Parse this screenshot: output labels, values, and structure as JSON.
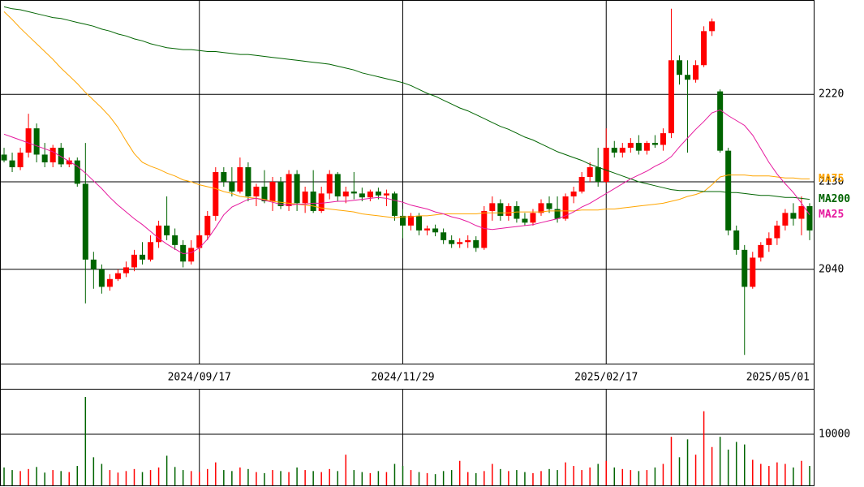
{
  "chart_data": [
    {
      "type": "candlestick",
      "categories": [
        null,
        null,
        null,
        null,
        null,
        null,
        null,
        null,
        null,
        null,
        null,
        null,
        null,
        null,
        null,
        null,
        null,
        null,
        null,
        null,
        null,
        null,
        null,
        null,
        "2024/09/17",
        null,
        null,
        null,
        null,
        null,
        null,
        null,
        null,
        null,
        null,
        null,
        null,
        null,
        null,
        null,
        null,
        null,
        null,
        null,
        null,
        null,
        null,
        null,
        null,
        "2024/11/29",
        null,
        null,
        null,
        null,
        null,
        null,
        null,
        null,
        null,
        null,
        null,
        null,
        null,
        null,
        null,
        null,
        null,
        null,
        null,
        null,
        null,
        null,
        null,
        null,
        "2025/02/17",
        null,
        null,
        null,
        null,
        null,
        null,
        null,
        null,
        null,
        null,
        null,
        null,
        null,
        null,
        null,
        null,
        null,
        null,
        null,
        null,
        null,
        null,
        null,
        null,
        "2025/05/01"
      ],
      "open": [
        2158,
        2152,
        2145,
        2160,
        2185,
        2158,
        2150,
        2165,
        2148,
        2152,
        2128,
        2050,
        2040,
        2022,
        2030,
        2036,
        2042,
        2055,
        2050,
        2068,
        2085,
        2075,
        2065,
        2048,
        2062,
        2075,
        2095,
        2140,
        2130,
        2120,
        2145,
        2115,
        2125,
        2110,
        2130,
        2105,
        2138,
        2108,
        2120,
        2100,
        2118,
        2138,
        2115,
        2120,
        2118,
        2114,
        2120,
        2116,
        2118,
        2095,
        2085,
        2095,
        2080,
        2082,
        2078,
        2070,
        2066,
        2068,
        2070,
        2062,
        2100,
        2108,
        2095,
        2105,
        2092,
        2088,
        2098,
        2108,
        2102,
        2092,
        2115,
        2120,
        2135,
        2145,
        2130,
        2165,
        2160,
        2165,
        2170,
        2162,
        2170,
        2168,
        2180,
        2255,
        2240,
        2235,
        2250,
        2285,
        2223,
        2162,
        2080,
        2060,
        2022,
        2052,
        2065,
        2072,
        2085,
        2098,
        2092,
        2105
      ],
      "high": [
        2165,
        2160,
        2165,
        2200,
        2190,
        2170,
        2168,
        2170,
        2155,
        2155,
        2170,
        2058,
        2045,
        2035,
        2040,
        2048,
        2060,
        2068,
        2075,
        2090,
        2115,
        2082,
        2070,
        2070,
        2080,
        2100,
        2145,
        2145,
        2145,
        2155,
        2150,
        2128,
        2142,
        2135,
        2135,
        2142,
        2142,
        2125,
        2142,
        2125,
        2142,
        2140,
        2125,
        2140,
        2124,
        2122,
        2124,
        2122,
        2120,
        2102,
        2098,
        2098,
        2085,
        2086,
        2082,
        2075,
        2072,
        2075,
        2074,
        2105,
        2115,
        2112,
        2108,
        2110,
        2098,
        2102,
        2112,
        2115,
        2115,
        2118,
        2125,
        2140,
        2150,
        2165,
        2185,
        2172,
        2170,
        2175,
        2178,
        2172,
        2178,
        2185,
        2308,
        2260,
        2255,
        2255,
        2290,
        2298,
        2225,
        2165,
        2085,
        2065,
        2058,
        2068,
        2078,
        2090,
        2102,
        2108,
        2115,
        2108
      ],
      "low": [
        2150,
        2140,
        2142,
        2155,
        2150,
        2145,
        2145,
        2145,
        2145,
        2125,
        2005,
        2020,
        2015,
        2018,
        2028,
        2032,
        2038,
        2045,
        2048,
        2062,
        2070,
        2060,
        2042,
        2045,
        2058,
        2070,
        2090,
        2125,
        2115,
        2118,
        2110,
        2105,
        2108,
        2100,
        2102,
        2100,
        2100,
        2098,
        2098,
        2098,
        2112,
        2110,
        2108,
        2112,
        2110,
        2110,
        2112,
        2105,
        2090,
        2072,
        2080,
        2075,
        2075,
        2074,
        2066,
        2062,
        2062,
        2062,
        2058,
        2060,
        2090,
        2090,
        2090,
        2088,
        2085,
        2085,
        2095,
        2098,
        2088,
        2090,
        2108,
        2118,
        2130,
        2125,
        2128,
        2155,
        2155,
        2160,
        2158,
        2158,
        2165,
        2162,
        2175,
        2230,
        2160,
        2232,
        2248,
        2280,
        2160,
        2075,
        2055,
        1952,
        2020,
        2048,
        2058,
        2065,
        2080,
        2085,
        2075,
        2070
      ],
      "close": [
        2152,
        2145,
        2160,
        2185,
        2158,
        2150,
        2165,
        2148,
        2152,
        2128,
        2050,
        2040,
        2022,
        2030,
        2036,
        2042,
        2055,
        2050,
        2068,
        2085,
        2075,
        2065,
        2048,
        2062,
        2075,
        2095,
        2140,
        2130,
        2120,
        2145,
        2115,
        2125,
        2110,
        2130,
        2105,
        2138,
        2108,
        2120,
        2100,
        2118,
        2138,
        2115,
        2120,
        2118,
        2114,
        2120,
        2116,
        2118,
        2095,
        2085,
        2095,
        2080,
        2082,
        2078,
        2070,
        2066,
        2068,
        2070,
        2062,
        2100,
        2108,
        2095,
        2105,
        2092,
        2088,
        2098,
        2108,
        2102,
        2092,
        2115,
        2120,
        2135,
        2145,
        2130,
        2165,
        2160,
        2165,
        2170,
        2162,
        2170,
        2168,
        2180,
        2255,
        2240,
        2235,
        2250,
        2285,
        2295,
        2162,
        2080,
        2060,
        2022,
        2052,
        2065,
        2072,
        2085,
        2098,
        2092,
        2105,
        2080
      ],
      "up_color": "#ff0000",
      "down_color": "#006400",
      "series": [
        {
          "name": "MA75",
          "color": "#ffa500",
          "values": [
            2305,
            2297,
            2288,
            2280,
            2272,
            2264,
            2256,
            2247,
            2239,
            2231,
            2222,
            2214,
            2206,
            2197,
            2186,
            2172,
            2159,
            2150,
            2146,
            2143,
            2139,
            2136,
            2132,
            2130,
            2127,
            2125,
            2123,
            2120,
            2118,
            2115,
            2114,
            2113,
            2112,
            2110,
            2109,
            2108,
            2107,
            2106,
            2105,
            2103,
            2102,
            2101,
            2100,
            2099,
            2097,
            2096,
            2095,
            2094,
            2093,
            2094,
            2094,
            2095,
            2095,
            2096,
            2097,
            2097,
            2097,
            2097,
            2097,
            2098,
            2098,
            2098,
            2098,
            2099,
            2099,
            2099,
            2099,
            2100,
            2100,
            2100,
            2100,
            2101,
            2101,
            2101,
            2102,
            2102,
            2103,
            2104,
            2105,
            2106,
            2107,
            2108,
            2110,
            2112,
            2115,
            2117,
            2120,
            2127,
            2135,
            2137,
            2137,
            2137,
            2136,
            2136,
            2136,
            2135,
            2134,
            2134,
            2133,
            2133
          ]
        },
        {
          "name": "MA200",
          "color": "#006400",
          "values": [
            2310,
            2308,
            2307,
            2305,
            2303,
            2301,
            2299,
            2298,
            2296,
            2294,
            2292,
            2290,
            2287,
            2285,
            2282,
            2280,
            2277,
            2275,
            2272,
            2270,
            2268,
            2267,
            2266,
            2266,
            2265,
            2264,
            2264,
            2263,
            2262,
            2261,
            2261,
            2260,
            2259,
            2258,
            2257,
            2256,
            2255,
            2254,
            2253,
            2252,
            2251,
            2249,
            2247,
            2245,
            2242,
            2240,
            2238,
            2236,
            2234,
            2232,
            2229,
            2225,
            2221,
            2218,
            2214,
            2210,
            2206,
            2203,
            2199,
            2195,
            2191,
            2187,
            2184,
            2180,
            2176,
            2173,
            2169,
            2165,
            2161,
            2158,
            2155,
            2152,
            2148,
            2145,
            2142,
            2139,
            2136,
            2133,
            2130,
            2128,
            2126,
            2124,
            2122,
            2121,
            2121,
            2121,
            2120,
            2120,
            2120,
            2119,
            2119,
            2118,
            2117,
            2116,
            2116,
            2115,
            2114,
            2114,
            2113,
            2112
          ]
        },
        {
          "name": "MA25",
          "color": "#e6199e",
          "values": [
            2179,
            2176,
            2173,
            2170,
            2167,
            2164,
            2161,
            2156,
            2151,
            2146,
            2139,
            2131,
            2123,
            2114,
            2106,
            2099,
            2092,
            2086,
            2079,
            2072,
            2066,
            2061,
            2056,
            2057,
            2062,
            2071,
            2083,
            2096,
            2104,
            2108,
            2112,
            2113,
            2111,
            2109,
            2107,
            2106,
            2107,
            2107,
            2108,
            2108,
            2109,
            2110,
            2110,
            2111,
            2112,
            2113,
            2114,
            2113,
            2111,
            2109,
            2106,
            2104,
            2102,
            2099,
            2097,
            2094,
            2092,
            2089,
            2085,
            2082,
            2081,
            2082,
            2083,
            2084,
            2085,
            2086,
            2088,
            2090,
            2092,
            2095,
            2099,
            2104,
            2108,
            2113,
            2118,
            2123,
            2128,
            2133,
            2137,
            2141,
            2146,
            2150,
            2156,
            2166,
            2175,
            2184,
            2192,
            2201,
            2204,
            2198,
            2193,
            2188,
            2178,
            2164,
            2150,
            2138,
            2128,
            2119,
            2108,
            2096
          ]
        }
      ],
      "ylim": [
        1943,
        2317
      ],
      "yticks": [
        2040,
        2130,
        2220
      ],
      "grid": true
    },
    {
      "type": "bar",
      "values": [
        3500,
        3000,
        2800,
        3200,
        3600,
        2500,
        3000,
        2800,
        2600,
        3800,
        17300,
        5500,
        4200,
        3000,
        2500,
        2800,
        3200,
        2600,
        3000,
        3500,
        5800,
        3600,
        3000,
        2800,
        2600,
        3200,
        4500,
        3000,
        2800,
        3500,
        3200,
        2600,
        2400,
        3000,
        2800,
        2600,
        3500,
        3000,
        2800,
        2600,
        3200,
        2800,
        6000,
        3000,
        2600,
        2400,
        2800,
        2600,
        4200,
        3800,
        3000,
        2600,
        2400,
        2200,
        2800,
        3000,
        4800,
        2600,
        2400,
        2800,
        4200,
        3200,
        2800,
        3000,
        2600,
        2400,
        2800,
        3200,
        3000,
        4500,
        3800,
        3000,
        3500,
        4200,
        4800,
        3500,
        3200,
        3000,
        2800,
        3000,
        3500,
        4200,
        9500,
        5500,
        9000,
        6000,
        14500,
        7500,
        9500,
        7000,
        8500,
        8000,
        5000,
        4200,
        3800,
        4500,
        4200,
        3500,
        4800,
        3800
      ],
      "ylim": [
        0,
        18730
      ],
      "yticks": [
        10000
      ],
      "grid": true
    }
  ]
}
